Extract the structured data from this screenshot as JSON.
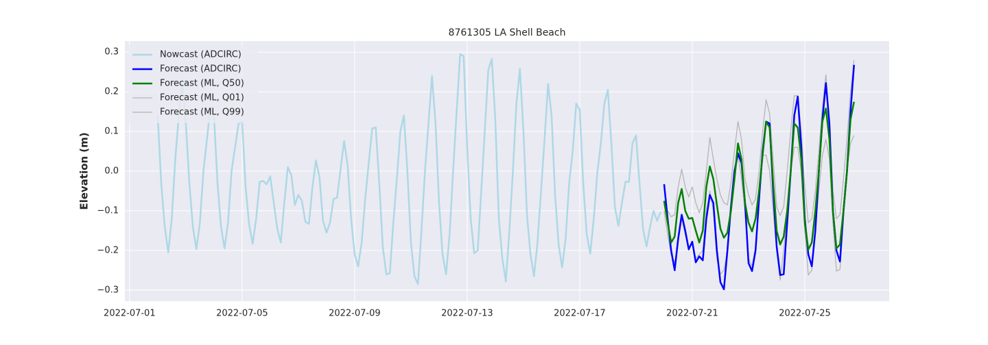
{
  "chart_data": {
    "type": "line",
    "title": "8761305 LA Shell Beach",
    "y_label": "Elevation (m)",
    "xlim": [
      "2022-06-30 20:00",
      "2022-07-28 00:00"
    ],
    "xticks": [
      "2022-07-01",
      "2022-07-05",
      "2022-07-09",
      "2022-07-13",
      "2022-07-17",
      "2022-07-21",
      "2022-07-25"
    ],
    "ylim": [
      -0.328,
      0.328
    ],
    "yticks": [
      {
        "value": -0.3,
        "label": "−0.3"
      },
      {
        "value": -0.2,
        "label": "−0.2"
      },
      {
        "value": -0.1,
        "label": "−0.1"
      },
      {
        "value": 0,
        "label": "0.0"
      },
      0.1,
      0.2,
      0.3
    ],
    "grid": true,
    "legend": "upper left",
    "series": [
      {
        "name": "Nowcast (ADCIRC)",
        "color": "#add8e6",
        "width": 2.5,
        "x": [
          "2022-07-02 00:00",
          "2022-07-02 03:00",
          "2022-07-02 06:00",
          "2022-07-02 09:00",
          "2022-07-02 12:00",
          "2022-07-02 15:00",
          "2022-07-02 18:00",
          "2022-07-02 21:00",
          "2022-07-03 00:00",
          "2022-07-03 03:00",
          "2022-07-03 06:00",
          "2022-07-03 09:00",
          "2022-07-03 12:00",
          "2022-07-03 15:00",
          "2022-07-03 18:00",
          "2022-07-03 21:00",
          "2022-07-04 00:00",
          "2022-07-04 03:00",
          "2022-07-04 06:00",
          "2022-07-04 09:00",
          "2022-07-04 12:00",
          "2022-07-04 15:00",
          "2022-07-04 18:00",
          "2022-07-04 21:00",
          "2022-07-05 00:00",
          "2022-07-05 03:00",
          "2022-07-05 06:00",
          "2022-07-05 09:00",
          "2022-07-05 12:00",
          "2022-07-05 15:00",
          "2022-07-05 18:00",
          "2022-07-05 21:00",
          "2022-07-06 00:00",
          "2022-07-06 03:00",
          "2022-07-06 06:00",
          "2022-07-06 09:00",
          "2022-07-06 12:00",
          "2022-07-06 15:00",
          "2022-07-06 18:00",
          "2022-07-06 21:00",
          "2022-07-07 00:00",
          "2022-07-07 03:00",
          "2022-07-07 06:00",
          "2022-07-07 09:00",
          "2022-07-07 12:00",
          "2022-07-07 15:00",
          "2022-07-07 18:00",
          "2022-07-07 21:00",
          "2022-07-08 00:00",
          "2022-07-08 03:00",
          "2022-07-08 06:00",
          "2022-07-08 09:00",
          "2022-07-08 12:00",
          "2022-07-08 15:00",
          "2022-07-08 18:00",
          "2022-07-08 21:00",
          "2022-07-09 00:00",
          "2022-07-09 03:00",
          "2022-07-09 06:00",
          "2022-07-09 09:00",
          "2022-07-09 12:00",
          "2022-07-09 15:00",
          "2022-07-09 18:00",
          "2022-07-09 21:00",
          "2022-07-10 00:00",
          "2022-07-10 03:00",
          "2022-07-10 06:00",
          "2022-07-10 09:00",
          "2022-07-10 12:00",
          "2022-07-10 15:00",
          "2022-07-10 18:00",
          "2022-07-10 21:00",
          "2022-07-11 00:00",
          "2022-07-11 03:00",
          "2022-07-11 06:00",
          "2022-07-11 09:00",
          "2022-07-11 12:00",
          "2022-07-11 15:00",
          "2022-07-11 18:00",
          "2022-07-11 21:00",
          "2022-07-12 00:00",
          "2022-07-12 03:00",
          "2022-07-12 06:00",
          "2022-07-12 09:00",
          "2022-07-12 12:00",
          "2022-07-12 15:00",
          "2022-07-12 18:00",
          "2022-07-12 21:00",
          "2022-07-13 00:00",
          "2022-07-13 03:00",
          "2022-07-13 06:00",
          "2022-07-13 09:00",
          "2022-07-13 12:00",
          "2022-07-13 15:00",
          "2022-07-13 18:00",
          "2022-07-13 21:00",
          "2022-07-14 00:00",
          "2022-07-14 03:00",
          "2022-07-14 06:00",
          "2022-07-14 09:00",
          "2022-07-14 12:00",
          "2022-07-14 15:00",
          "2022-07-14 18:00",
          "2022-07-14 21:00",
          "2022-07-15 00:00",
          "2022-07-15 03:00",
          "2022-07-15 06:00",
          "2022-07-15 09:00",
          "2022-07-15 12:00",
          "2022-07-15 15:00",
          "2022-07-15 18:00",
          "2022-07-15 21:00",
          "2022-07-16 00:00",
          "2022-07-16 03:00",
          "2022-07-16 06:00",
          "2022-07-16 09:00",
          "2022-07-16 12:00",
          "2022-07-16 15:00",
          "2022-07-16 18:00",
          "2022-07-16 21:00",
          "2022-07-17 00:00",
          "2022-07-17 03:00",
          "2022-07-17 06:00",
          "2022-07-17 09:00",
          "2022-07-17 12:00",
          "2022-07-17 15:00",
          "2022-07-17 18:00",
          "2022-07-17 21:00",
          "2022-07-18 00:00",
          "2022-07-18 03:00",
          "2022-07-18 06:00",
          "2022-07-18 09:00",
          "2022-07-18 12:00",
          "2022-07-18 15:00",
          "2022-07-18 18:00",
          "2022-07-18 21:00",
          "2022-07-19 00:00",
          "2022-07-19 03:00",
          "2022-07-19 06:00",
          "2022-07-19 09:00",
          "2022-07-19 12:00",
          "2022-07-19 15:00",
          "2022-07-19 18:00",
          "2022-07-19 21:00"
        ],
        "values": [
          0.14,
          -0.03,
          -0.14,
          -0.205,
          -0.12,
          0.03,
          0.14,
          0.23,
          0.12,
          -0.03,
          -0.14,
          -0.197,
          -0.13,
          0.0,
          0.08,
          0.16,
          0.14,
          -0.03,
          -0.14,
          -0.195,
          -0.13,
          0.0,
          0.06,
          0.12,
          0.125,
          -0.04,
          -0.135,
          -0.183,
          -0.12,
          -0.027,
          -0.025,
          -0.033,
          -0.013,
          -0.08,
          -0.145,
          -0.18,
          -0.08,
          0.01,
          -0.01,
          -0.085,
          -0.06,
          -0.075,
          -0.128,
          -0.133,
          -0.04,
          0.027,
          -0.015,
          -0.125,
          -0.155,
          -0.13,
          -0.07,
          -0.067,
          0.005,
          0.076,
          0.015,
          -0.12,
          -0.21,
          -0.24,
          -0.18,
          -0.07,
          0.02,
          0.108,
          0.11,
          -0.03,
          -0.19,
          -0.26,
          -0.258,
          -0.13,
          -0.02,
          0.1,
          0.14,
          0.0,
          -0.18,
          -0.265,
          -0.285,
          -0.15,
          0.0,
          0.12,
          0.24,
          0.12,
          -0.08,
          -0.21,
          -0.26,
          -0.16,
          0.0,
          0.15,
          0.295,
          0.29,
          0.06,
          -0.12,
          -0.207,
          -0.2,
          -0.05,
          0.1,
          0.255,
          0.283,
          0.13,
          -0.12,
          -0.22,
          -0.278,
          -0.15,
          0.0,
          0.17,
          0.258,
          0.1,
          -0.11,
          -0.21,
          -0.265,
          -0.18,
          -0.05,
          0.08,
          0.22,
          0.14,
          -0.06,
          -0.185,
          -0.243,
          -0.17,
          -0.03,
          0.05,
          0.17,
          0.155,
          -0.03,
          -0.16,
          -0.208,
          -0.12,
          -0.005,
          0.07,
          0.17,
          0.205,
          0.07,
          -0.09,
          -0.138,
          -0.08,
          -0.027,
          -0.027,
          0.07,
          0.09,
          -0.03,
          -0.145,
          -0.19,
          -0.14,
          -0.1,
          -0.125,
          -0.103
        ]
      },
      {
        "name": "Forecast (ADCIRC)",
        "color": "#0000ff",
        "width": 2.5,
        "x": [
          "2022-07-20 00:00",
          "2022-07-20 03:00",
          "2022-07-20 06:00",
          "2022-07-20 09:00",
          "2022-07-20 12:00",
          "2022-07-20 15:00",
          "2022-07-20 18:00",
          "2022-07-20 21:00",
          "2022-07-21 00:00",
          "2022-07-21 03:00",
          "2022-07-21 06:00",
          "2022-07-21 09:00",
          "2022-07-21 12:00",
          "2022-07-21 15:00",
          "2022-07-21 18:00",
          "2022-07-21 21:00",
          "2022-07-22 00:00",
          "2022-07-22 03:00",
          "2022-07-22 06:00",
          "2022-07-22 09:00",
          "2022-07-22 12:00",
          "2022-07-22 15:00",
          "2022-07-22 18:00",
          "2022-07-22 21:00",
          "2022-07-23 00:00",
          "2022-07-23 03:00",
          "2022-07-23 06:00",
          "2022-07-23 09:00",
          "2022-07-23 12:00",
          "2022-07-23 15:00",
          "2022-07-23 18:00",
          "2022-07-23 21:00",
          "2022-07-24 00:00",
          "2022-07-24 03:00",
          "2022-07-24 06:00",
          "2022-07-24 09:00",
          "2022-07-24 12:00",
          "2022-07-24 15:00",
          "2022-07-24 18:00",
          "2022-07-24 21:00",
          "2022-07-25 00:00",
          "2022-07-25 03:00",
          "2022-07-25 06:00",
          "2022-07-25 09:00",
          "2022-07-25 12:00",
          "2022-07-25 15:00",
          "2022-07-25 18:00",
          "2022-07-25 21:00",
          "2022-07-26 00:00",
          "2022-07-26 03:00",
          "2022-07-26 06:00",
          "2022-07-26 09:00",
          "2022-07-26 12:00",
          "2022-07-26 15:00",
          "2022-07-26 18:00"
        ],
        "values": [
          -0.033,
          -0.12,
          -0.2,
          -0.25,
          -0.17,
          -0.11,
          -0.15,
          -0.197,
          -0.178,
          -0.23,
          -0.215,
          -0.225,
          -0.12,
          -0.06,
          -0.08,
          -0.2,
          -0.28,
          -0.298,
          -0.2,
          -0.09,
          0.0,
          0.045,
          0.02,
          -0.08,
          -0.232,
          -0.252,
          -0.2,
          -0.07,
          0.05,
          0.125,
          0.12,
          -0.05,
          -0.19,
          -0.262,
          -0.26,
          -0.13,
          0.0,
          0.14,
          0.188,
          0.06,
          -0.12,
          -0.21,
          -0.24,
          -0.15,
          0.0,
          0.13,
          0.222,
          0.12,
          -0.1,
          -0.2,
          -0.228,
          -0.1,
          0.0,
          0.15,
          0.268
        ]
      },
      {
        "name": "Forecast (ML, Q50)",
        "color": "#008000",
        "width": 2.5,
        "x": [
          "2022-07-20 00:00",
          "2022-07-20 03:00",
          "2022-07-20 06:00",
          "2022-07-20 09:00",
          "2022-07-20 12:00",
          "2022-07-20 15:00",
          "2022-07-20 18:00",
          "2022-07-20 21:00",
          "2022-07-21 00:00",
          "2022-07-21 03:00",
          "2022-07-21 06:00",
          "2022-07-21 09:00",
          "2022-07-21 12:00",
          "2022-07-21 15:00",
          "2022-07-21 18:00",
          "2022-07-21 21:00",
          "2022-07-22 00:00",
          "2022-07-22 03:00",
          "2022-07-22 06:00",
          "2022-07-22 09:00",
          "2022-07-22 12:00",
          "2022-07-22 15:00",
          "2022-07-22 18:00",
          "2022-07-22 21:00",
          "2022-07-23 00:00",
          "2022-07-23 03:00",
          "2022-07-23 06:00",
          "2022-07-23 09:00",
          "2022-07-23 12:00",
          "2022-07-23 15:00",
          "2022-07-23 18:00",
          "2022-07-23 21:00",
          "2022-07-24 00:00",
          "2022-07-24 03:00",
          "2022-07-24 06:00",
          "2022-07-24 09:00",
          "2022-07-24 12:00",
          "2022-07-24 15:00",
          "2022-07-24 18:00",
          "2022-07-24 21:00",
          "2022-07-25 00:00",
          "2022-07-25 03:00",
          "2022-07-25 06:00",
          "2022-07-25 09:00",
          "2022-07-25 12:00",
          "2022-07-25 15:00",
          "2022-07-25 18:00",
          "2022-07-25 21:00",
          "2022-07-26 00:00",
          "2022-07-26 03:00",
          "2022-07-26 06:00",
          "2022-07-26 09:00",
          "2022-07-26 12:00",
          "2022-07-26 15:00",
          "2022-07-26 18:00"
        ],
        "values": [
          -0.075,
          -0.13,
          -0.18,
          -0.165,
          -0.08,
          -0.045,
          -0.1,
          -0.12,
          -0.118,
          -0.15,
          -0.18,
          -0.15,
          -0.04,
          0.012,
          -0.02,
          -0.085,
          -0.145,
          -0.168,
          -0.155,
          -0.1,
          -0.02,
          0.07,
          0.03,
          -0.08,
          -0.13,
          -0.152,
          -0.12,
          -0.05,
          0.04,
          0.125,
          0.11,
          -0.03,
          -0.15,
          -0.185,
          -0.165,
          -0.1,
          0.0,
          0.12,
          0.11,
          0.03,
          -0.13,
          -0.198,
          -0.18,
          -0.1,
          0.0,
          0.125,
          0.158,
          0.08,
          -0.1,
          -0.195,
          -0.185,
          -0.1,
          0.0,
          0.13,
          0.175
        ]
      },
      {
        "name": "Forecast (ML, Q01)",
        "color": "#b4b4b4",
        "width": 1.3,
        "x": [
          "2022-07-20 00:00",
          "2022-07-20 03:00",
          "2022-07-20 06:00",
          "2022-07-20 09:00",
          "2022-07-20 12:00",
          "2022-07-20 15:00",
          "2022-07-20 18:00",
          "2022-07-20 21:00",
          "2022-07-21 00:00",
          "2022-07-21 03:00",
          "2022-07-21 06:00",
          "2022-07-21 09:00",
          "2022-07-21 12:00",
          "2022-07-21 15:00",
          "2022-07-21 18:00",
          "2022-07-21 21:00",
          "2022-07-22 00:00",
          "2022-07-22 03:00",
          "2022-07-22 06:00",
          "2022-07-22 09:00",
          "2022-07-22 12:00",
          "2022-07-22 15:00",
          "2022-07-22 18:00",
          "2022-07-22 21:00",
          "2022-07-23 00:00",
          "2022-07-23 03:00",
          "2022-07-23 06:00",
          "2022-07-23 09:00",
          "2022-07-23 12:00",
          "2022-07-23 15:00",
          "2022-07-23 18:00",
          "2022-07-23 21:00",
          "2022-07-24 00:00",
          "2022-07-24 03:00",
          "2022-07-24 06:00",
          "2022-07-24 09:00",
          "2022-07-24 12:00",
          "2022-07-24 15:00",
          "2022-07-24 18:00",
          "2022-07-24 21:00",
          "2022-07-25 00:00",
          "2022-07-25 03:00",
          "2022-07-25 06:00",
          "2022-07-25 09:00",
          "2022-07-25 12:00",
          "2022-07-25 15:00",
          "2022-07-25 18:00",
          "2022-07-25 21:00",
          "2022-07-26 00:00",
          "2022-07-26 03:00",
          "2022-07-26 06:00",
          "2022-07-26 09:00",
          "2022-07-26 12:00",
          "2022-07-26 15:00",
          "2022-07-26 18:00"
        ],
        "values": [
          -0.1,
          -0.16,
          -0.21,
          -0.23,
          -0.18,
          -0.12,
          -0.16,
          -0.2,
          -0.18,
          -0.22,
          -0.21,
          -0.2,
          -0.1,
          -0.05,
          -0.1,
          -0.22,
          -0.26,
          -0.25,
          -0.2,
          -0.1,
          -0.02,
          0.04,
          -0.02,
          -0.1,
          -0.22,
          -0.24,
          -0.19,
          -0.06,
          0.04,
          0.04,
          0.0,
          -0.1,
          -0.2,
          -0.275,
          -0.2,
          -0.1,
          0.0,
          0.06,
          0.06,
          0.0,
          -0.15,
          -0.262,
          -0.25,
          -0.15,
          -0.05,
          0.04,
          0.08,
          0.03,
          -0.13,
          -0.252,
          -0.248,
          -0.12,
          0.0,
          0.07,
          0.09
        ]
      },
      {
        "name": "Forecast (ML, Q99)",
        "color": "#b4b4b4",
        "width": 1.3,
        "x": [
          "2022-07-20 00:00",
          "2022-07-20 03:00",
          "2022-07-20 06:00",
          "2022-07-20 09:00",
          "2022-07-20 12:00",
          "2022-07-20 15:00",
          "2022-07-20 18:00",
          "2022-07-20 21:00",
          "2022-07-21 00:00",
          "2022-07-21 03:00",
          "2022-07-21 06:00",
          "2022-07-21 09:00",
          "2022-07-21 12:00",
          "2022-07-21 15:00",
          "2022-07-21 18:00",
          "2022-07-21 21:00",
          "2022-07-22 00:00",
          "2022-07-22 03:00",
          "2022-07-22 06:00",
          "2022-07-22 09:00",
          "2022-07-22 12:00",
          "2022-07-22 15:00",
          "2022-07-22 18:00",
          "2022-07-22 21:00",
          "2022-07-23 00:00",
          "2022-07-23 03:00",
          "2022-07-23 06:00",
          "2022-07-23 09:00",
          "2022-07-23 12:00",
          "2022-07-23 15:00",
          "2022-07-23 18:00",
          "2022-07-23 21:00",
          "2022-07-24 00:00",
          "2022-07-24 03:00",
          "2022-07-24 06:00",
          "2022-07-24 09:00",
          "2022-07-24 12:00",
          "2022-07-24 15:00",
          "2022-07-24 18:00",
          "2022-07-24 21:00",
          "2022-07-25 00:00",
          "2022-07-25 03:00",
          "2022-07-25 06:00",
          "2022-07-25 09:00",
          "2022-07-25 12:00",
          "2022-07-25 15:00",
          "2022-07-25 18:00",
          "2022-07-25 21:00",
          "2022-07-26 00:00",
          "2022-07-26 03:00",
          "2022-07-26 06:00",
          "2022-07-26 09:00",
          "2022-07-26 12:00",
          "2022-07-26 15:00",
          "2022-07-26 18:00"
        ],
        "values": [
          -0.08,
          -0.1,
          -0.115,
          -0.11,
          -0.04,
          0.005,
          -0.04,
          -0.065,
          -0.04,
          -0.08,
          -0.105,
          -0.08,
          0.0,
          0.085,
          0.03,
          -0.02,
          -0.06,
          -0.08,
          -0.085,
          -0.03,
          0.05,
          0.125,
          0.08,
          -0.02,
          -0.06,
          -0.085,
          -0.07,
          0.0,
          0.1,
          0.18,
          0.145,
          0.03,
          -0.09,
          -0.112,
          -0.09,
          0.0,
          0.1,
          0.19,
          0.19,
          0.1,
          -0.04,
          -0.13,
          -0.12,
          -0.05,
          0.05,
          0.16,
          0.243,
          0.12,
          -0.05,
          -0.12,
          -0.11,
          -0.02,
          0.08,
          0.2,
          0.28
        ]
      }
    ]
  }
}
